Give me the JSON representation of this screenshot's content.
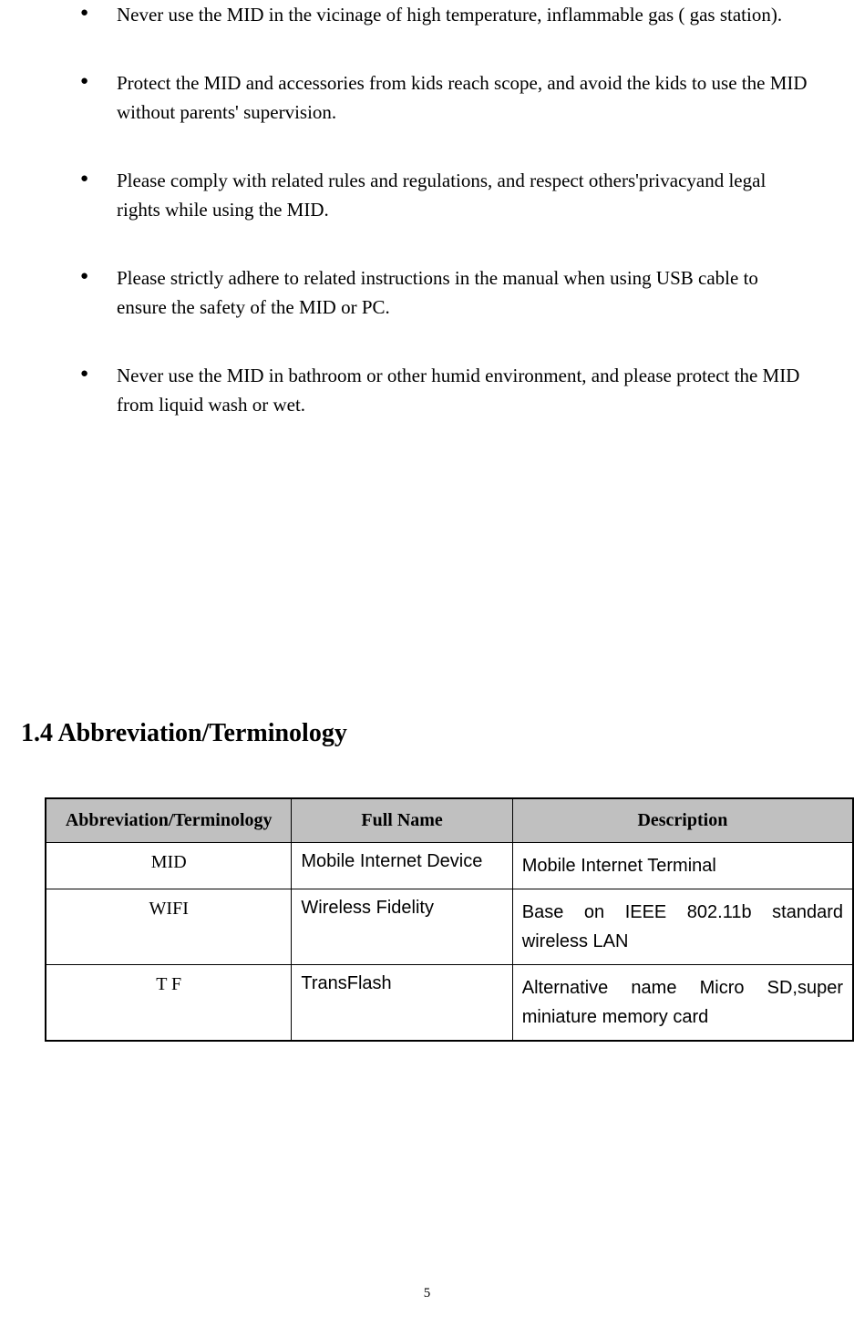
{
  "bullets": [
    "Never use the MID in the vicinage of high temperature, inflammable gas ( gas station).",
    "Protect the MID and accessories from kids reach scope, and avoid the kids to use the MID without parents' supervision.",
    "Please comply with related rules and regulations, and respect others'privacyand legal rights while using the MID.",
    "Please strictly adhere to related instructions in the manual when using USB cable to ensure the safety of the MID or PC.",
    "Never use the MID in bathroom or other humid environment, and please protect the MID from liquid wash or wet."
  ],
  "section_heading": "1.4 Abbreviation/Terminology",
  "table": {
    "headers": [
      "Abbreviation/Terminology",
      "Full Name",
      "Description"
    ],
    "rows": [
      {
        "abbr": "MID",
        "full": "Mobile Internet Device",
        "desc": "Mobile Internet Terminal"
      },
      {
        "abbr": "WIFI",
        "full": "Wireless Fidelity",
        "desc": "Base on IEEE 802.11b standard wireless LAN"
      },
      {
        "abbr": "T F",
        "full": "TransFlash",
        "desc": "Alternative name Micro SD,super miniature memory card"
      }
    ]
  },
  "page_number": "5",
  "colors": {
    "background": "#ffffff",
    "text": "#000000",
    "table_header_bg": "#c0c0c0",
    "table_border": "#000000"
  },
  "fonts": {
    "body": "Times New Roman",
    "table_cells": "Arial",
    "body_size_pt": 16,
    "heading_size_pt": 21
  }
}
